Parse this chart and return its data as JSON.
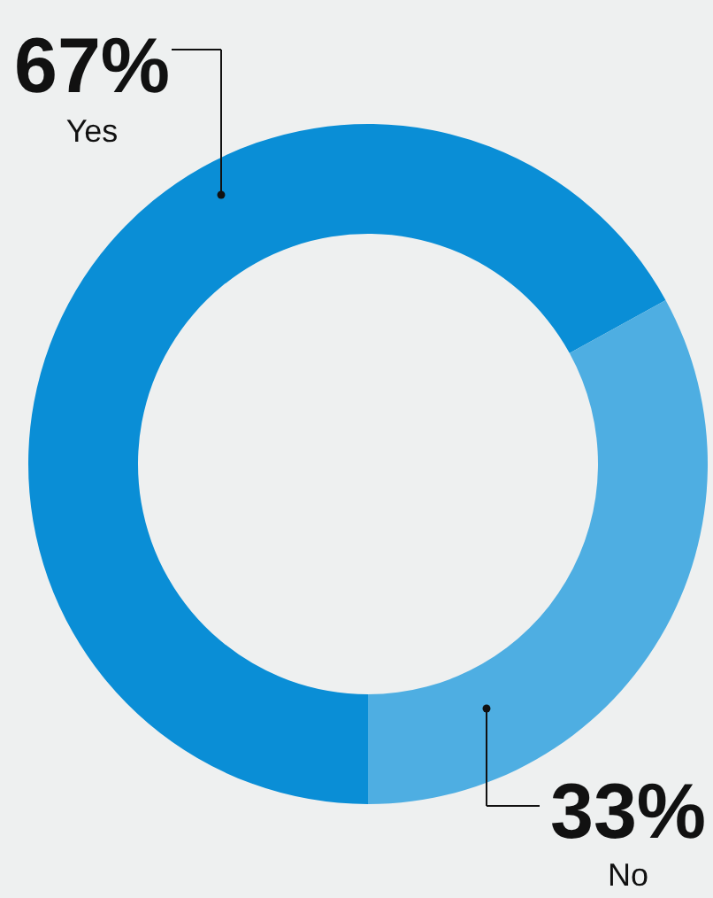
{
  "chart_data": {
    "type": "donut",
    "categories": [
      "Yes",
      "No"
    ],
    "values": [
      67,
      33
    ],
    "colors": [
      "#0a8ed6",
      "#4eaee2"
    ],
    "value_labels": [
      "67%",
      "33%"
    ]
  }
}
